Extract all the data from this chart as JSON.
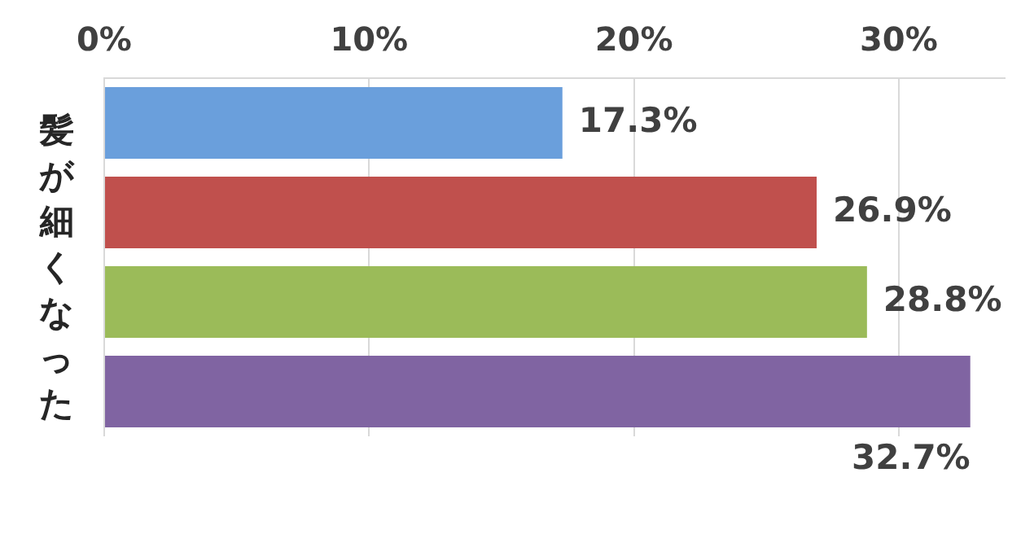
{
  "chart_data": {
    "type": "bar",
    "orientation": "horizontal",
    "ylabel": "髪が細くなった",
    "categories": [
      null,
      null,
      null,
      null
    ],
    "values": [
      17.3,
      26.9,
      28.8,
      32.7
    ],
    "value_labels": [
      "17.3%",
      "26.9%",
      "28.8%",
      "32.7%"
    ],
    "colors": [
      "#6a9fdc",
      "#c0504d",
      "#9bbb59",
      "#8064a2"
    ],
    "xlim": [
      0,
      34
    ],
    "xticks": [
      {
        "value": 0,
        "label": "0%"
      },
      {
        "value": 10,
        "label": "10%"
      },
      {
        "value": 20,
        "label": "20%"
      },
      {
        "value": 30,
        "label": "30%"
      }
    ],
    "grid": "x",
    "legend": false
  }
}
